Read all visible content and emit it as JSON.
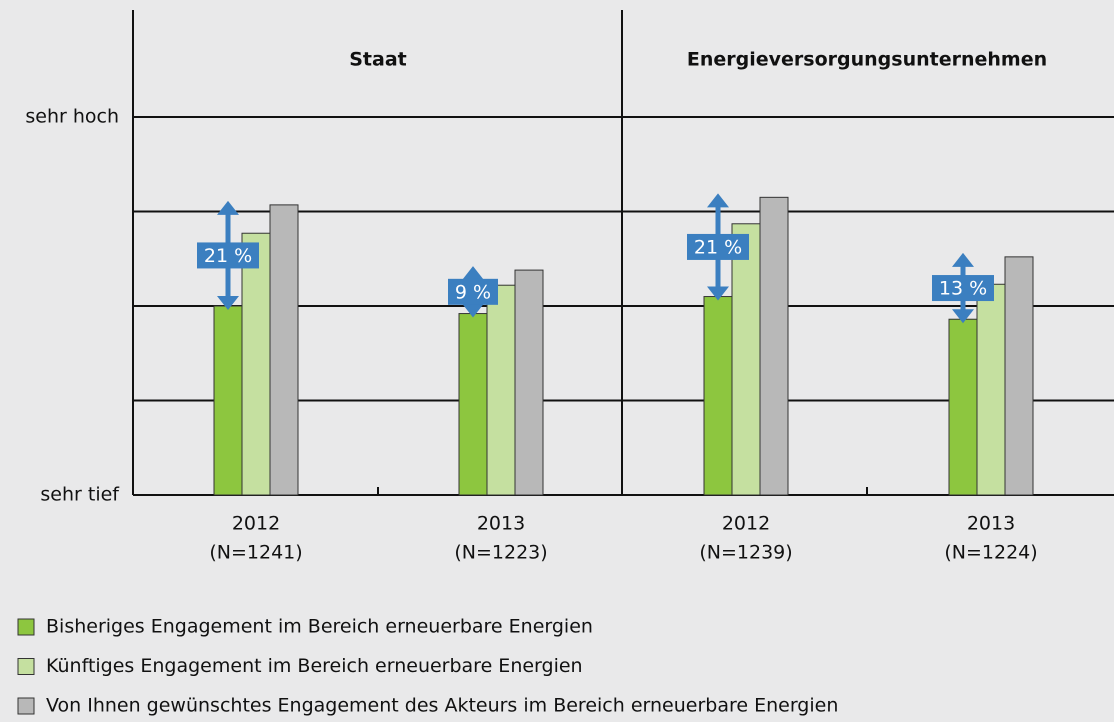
{
  "chart_data": {
    "type": "bar",
    "panels": [
      "Staat",
      "Energieversorgungsunternehmen"
    ],
    "categories": [
      "2012",
      "2013",
      "2012",
      "2013"
    ],
    "category_sublabels": [
      "(N=1241)",
      "(N=1223)",
      "(N=1239)",
      "(N=1224)"
    ],
    "series": [
      {
        "name": "Bisheriges Engagement im Bereich erneuerbare Energien",
        "color": "#8dc63f",
        "values": [
          3.0,
          2.92,
          3.1,
          2.86
        ]
      },
      {
        "name": "Künftiges Engagement im Bereich erneuerbare Energien",
        "color": "#c5e0a0",
        "values": [
          3.77,
          3.22,
          3.87,
          3.23
        ]
      },
      {
        "name": "Von Ihnen gewünschtes Engagement des Akteurs im Bereich erneuerbare Energien",
        "color": "#b8b8b8",
        "values": [
          4.07,
          3.38,
          4.15,
          3.52
        ]
      }
    ],
    "annotations": [
      "21 %",
      "9 %",
      "21 %",
      "13 %"
    ],
    "ylim": [
      1,
      5
    ],
    "yticks": [
      {
        "value": 1,
        "label": "sehr tief"
      },
      {
        "value": 2,
        "label": null
      },
      {
        "value": 3,
        "label": null
      },
      {
        "value": 4,
        "label": null
      },
      {
        "value": 5,
        "label": "sehr hoch"
      }
    ],
    "grid": true
  }
}
